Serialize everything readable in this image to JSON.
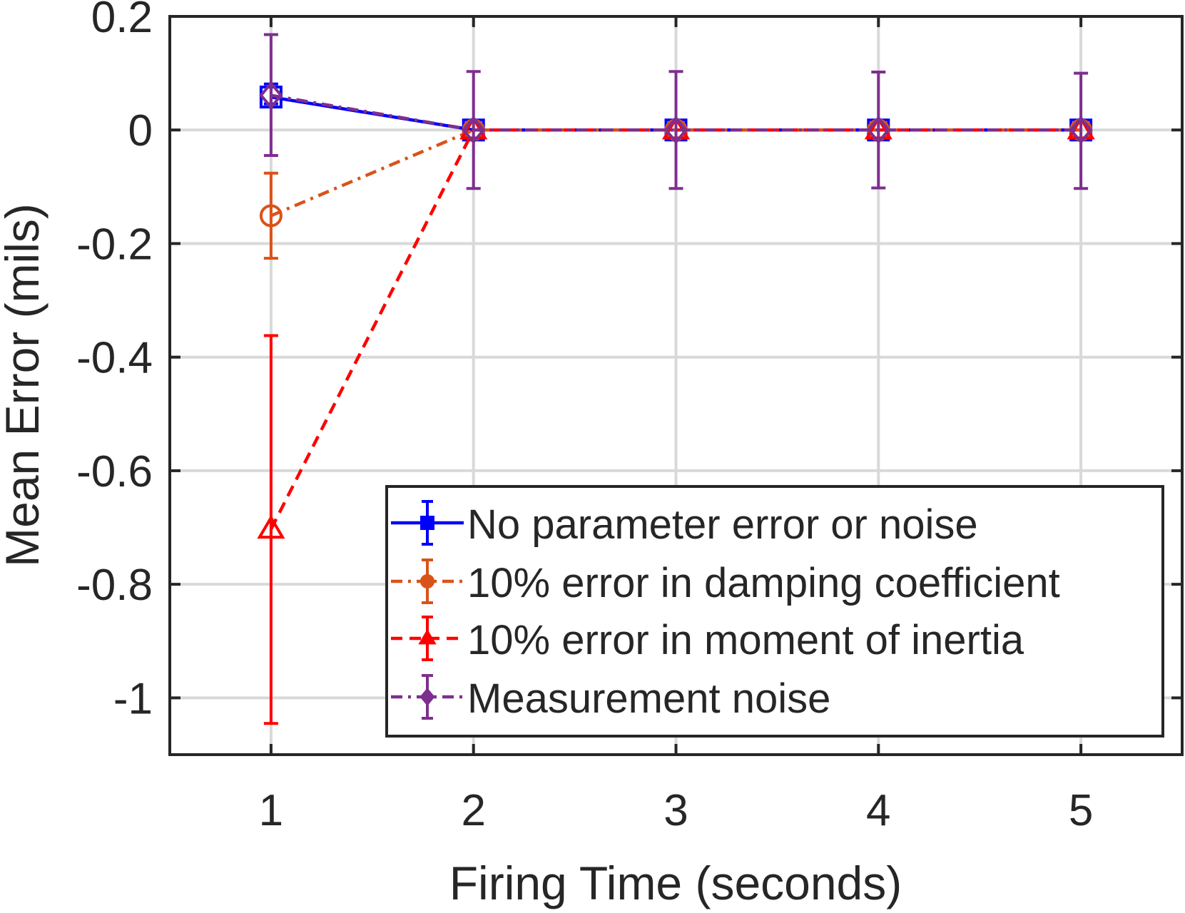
{
  "chart_data": {
    "type": "line",
    "title": "",
    "xlabel": "Firing Time (seconds)",
    "ylabel": "Mean Error (mils)",
    "xlim": [
      0.5,
      5.5
    ],
    "ylim": [
      -1.1,
      0.2
    ],
    "xticks": [
      1,
      2,
      3,
      4,
      5
    ],
    "xtick_labels": [
      "1",
      "2",
      "3",
      "4",
      "5"
    ],
    "yticks": [
      -1,
      -0.8,
      -0.6,
      -0.4,
      -0.2,
      0,
      0.2
    ],
    "ytick_labels": [
      "-1",
      "-0.8",
      "-0.6",
      "-0.4",
      "-0.2",
      "0",
      "0.2"
    ],
    "grid": true,
    "legend_position": "bottom-right",
    "x": [
      1,
      2,
      3,
      4,
      5
    ],
    "series": [
      {
        "name": "No parameter error or noise",
        "color": "#0000ff",
        "line_style": "solid",
        "marker": "square",
        "values": [
          0.058,
          0.0,
          0.0,
          0.0,
          0.0
        ],
        "err_low": [
          0.046,
          0.0,
          0.0,
          0.0,
          0.0
        ],
        "err_high": [
          0.081,
          0.0,
          0.0,
          0.0,
          0.0
        ]
      },
      {
        "name": "10% error in damping coefficient",
        "color": "#d95319",
        "line_style": "dashdot",
        "marker": "circle",
        "values": [
          -0.151,
          0.0,
          0.0,
          0.0,
          0.0
        ],
        "err_low": [
          -0.226,
          0.0,
          0.0,
          0.0,
          0.0
        ],
        "err_high": [
          -0.076,
          0.0,
          0.0,
          0.0,
          0.0
        ]
      },
      {
        "name": "10% error in moment of inertia",
        "color": "#ff0000",
        "line_style": "dashed",
        "marker": "triangle",
        "values": [
          -0.703,
          0.0,
          0.0,
          0.0,
          0.0
        ],
        "err_low": [
          -1.045,
          0.0,
          0.0,
          0.0,
          0.0
        ],
        "err_high": [
          -0.362,
          0.0,
          0.0,
          0.0,
          0.0
        ]
      },
      {
        "name": "Measurement noise",
        "color": "#7e2f8e",
        "line_style": "dashdot",
        "marker": "diamond",
        "values": [
          0.061,
          0.0,
          0.0,
          0.0,
          0.0
        ],
        "err_low": [
          -0.045,
          -0.103,
          -0.103,
          -0.102,
          -0.103
        ],
        "err_high": [
          0.168,
          0.103,
          0.103,
          0.102,
          0.1
        ]
      }
    ]
  }
}
